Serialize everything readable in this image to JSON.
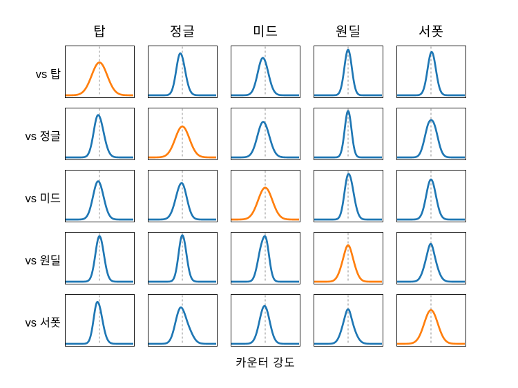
{
  "chart_data": {
    "type": "area",
    "subtype": "kde-small-multiples-grid",
    "title": "",
    "xlabel": "카운터 강도",
    "col_headers": [
      "탑",
      "정글",
      "미드",
      "원딜",
      "서폿"
    ],
    "row_headers": [
      "vs 탑",
      "vs 정글",
      "vs 미드",
      "vs 원딜",
      "vs 서폿"
    ],
    "colors": {
      "base_curve": "#1f77b4",
      "diagonal_highlight_curve": "#ff7f0e",
      "reference_line": "#999999",
      "frame": "#1a1a1a",
      "text": "#000000"
    },
    "reference_line": {
      "style": "dashed",
      "position_x_fraction": 0.5,
      "spans_full_height": true
    },
    "axes": {
      "x_range_fraction": [
        0,
        1
      ],
      "ticks_visible": false,
      "grid": false
    },
    "cells": [
      [
        {
          "row": "vs 탑",
          "col": "탑",
          "highlight": true,
          "amp": 0.72,
          "comps": [
            [
              0.5,
              0.115,
              0.115,
              1
            ]
          ]
        },
        {
          "row": "vs 탑",
          "col": "정글",
          "highlight": false,
          "amp": 0.92,
          "comps": [
            [
              0.47,
              0.06,
              0.07,
              1
            ]
          ]
        },
        {
          "row": "vs 탑",
          "col": "미드",
          "highlight": false,
          "amp": 0.82,
          "comps": [
            [
              0.465,
              0.075,
              0.08,
              1
            ]
          ]
        },
        {
          "row": "vs 탑",
          "col": "원딜",
          "highlight": false,
          "amp": 1.0,
          "comps": [
            [
              0.5,
              0.055,
              0.055,
              1
            ]
          ]
        },
        {
          "row": "vs 탑",
          "col": "서폿",
          "highlight": false,
          "amp": 0.95,
          "comps": [
            [
              0.51,
              0.06,
              0.062,
              1
            ]
          ]
        }
      ],
      [
        {
          "row": "vs 정글",
          "col": "탑",
          "highlight": false,
          "amp": 0.93,
          "comps": [
            [
              0.48,
              0.065,
              0.08,
              1
            ]
          ]
        },
        {
          "row": "vs 정글",
          "col": "정글",
          "highlight": true,
          "amp": 0.68,
          "comps": [
            [
              0.5,
              0.105,
              0.105,
              1
            ]
          ]
        },
        {
          "row": "vs 정글",
          "col": "미드",
          "highlight": false,
          "amp": 0.78,
          "comps": [
            [
              0.47,
              0.085,
              0.09,
              1
            ]
          ]
        },
        {
          "row": "vs 정글",
          "col": "원딜",
          "highlight": false,
          "amp": 1.02,
          "comps": [
            [
              0.5,
              0.05,
              0.05,
              1
            ]
          ]
        },
        {
          "row": "vs 정글",
          "col": "서폿",
          "highlight": false,
          "amp": 0.82,
          "comps": [
            [
              0.53,
              0.07,
              0.07,
              1
            ],
            [
              0.44,
              0.06,
              0.05,
              0.45
            ]
          ]
        }
      ],
      [
        {
          "row": "vs 미드",
          "col": "탑",
          "highlight": false,
          "amp": 0.84,
          "comps": [
            [
              0.48,
              0.075,
              0.08,
              1
            ]
          ]
        },
        {
          "row": "vs 미드",
          "col": "정글",
          "highlight": false,
          "amp": 0.8,
          "comps": [
            [
              0.49,
              0.085,
              0.075,
              1
            ]
          ]
        },
        {
          "row": "vs 미드",
          "col": "미드",
          "highlight": true,
          "amp": 0.7,
          "comps": [
            [
              0.5,
              0.105,
              0.105,
              1
            ]
          ]
        },
        {
          "row": "vs 미드",
          "col": "원딜",
          "highlight": false,
          "amp": 1.0,
          "comps": [
            [
              0.5,
              0.055,
              0.06,
              1
            ],
            [
              0.58,
              0.045,
              0.055,
              0.22
            ]
          ]
        },
        {
          "row": "vs 미드",
          "col": "서폿",
          "highlight": false,
          "amp": 0.88,
          "comps": [
            [
              0.5,
              0.07,
              0.072,
              1
            ]
          ]
        }
      ],
      [
        {
          "row": "vs 원딜",
          "col": "탑",
          "highlight": false,
          "amp": 1.0,
          "comps": [
            [
              0.5,
              0.06,
              0.065,
              1
            ]
          ]
        },
        {
          "row": "vs 원딜",
          "col": "정글",
          "highlight": false,
          "amp": 1.02,
          "comps": [
            [
              0.5,
              0.055,
              0.06,
              1
            ]
          ]
        },
        {
          "row": "vs 원딜",
          "col": "미드",
          "highlight": false,
          "amp": 1.0,
          "comps": [
            [
              0.5,
              0.06,
              0.055,
              1
            ],
            [
              0.41,
              0.05,
              0.04,
              0.3
            ]
          ]
        },
        {
          "row": "vs 원딜",
          "col": "원딜",
          "highlight": true,
          "amp": 0.8,
          "comps": [
            [
              0.465,
              0.075,
              0.06,
              1
            ],
            [
              0.535,
              0.06,
              0.075,
              1
            ]
          ]
        },
        {
          "row": "vs 원딜",
          "col": "서폿",
          "highlight": false,
          "amp": 0.83,
          "comps": [
            [
              0.465,
              0.07,
              0.055,
              1
            ],
            [
              0.525,
              0.05,
              0.075,
              0.92
            ]
          ]
        }
      ],
      [
        {
          "row": "vs 서폿",
          "col": "탑",
          "highlight": false,
          "amp": 0.92,
          "comps": [
            [
              0.47,
              0.055,
              0.07,
              1
            ]
          ]
        },
        {
          "row": "vs 서폿",
          "col": "정글",
          "highlight": false,
          "amp": 0.8,
          "comps": [
            [
              0.46,
              0.07,
              0.06,
              1
            ],
            [
              0.56,
              0.06,
              0.08,
              0.55
            ]
          ]
        },
        {
          "row": "vs 서폿",
          "col": "미드",
          "highlight": false,
          "amp": 0.83,
          "comps": [
            [
              0.49,
              0.075,
              0.075,
              1
            ]
          ]
        },
        {
          "row": "vs 서폿",
          "col": "원딜",
          "highlight": false,
          "amp": 0.76,
          "comps": [
            [
              0.47,
              0.07,
              0.055,
              1
            ],
            [
              0.53,
              0.05,
              0.08,
              0.85
            ]
          ]
        },
        {
          "row": "vs 서폿",
          "col": "서폿",
          "highlight": true,
          "amp": 0.74,
          "comps": [
            [
              0.5,
              0.1,
              0.1,
              1
            ]
          ]
        }
      ]
    ]
  }
}
